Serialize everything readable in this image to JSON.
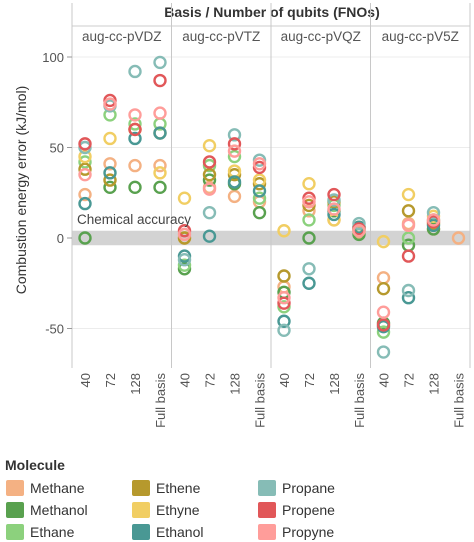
{
  "chart_data": {
    "type": "scatter",
    "title": "Basis  /  Number of qubits (FNOs)",
    "ylabel": "Combustion energy error (kJ/mol)",
    "ylim": [
      -70,
      105
    ],
    "yticks": [
      -50,
      0,
      50,
      100
    ],
    "grid": "horizontal",
    "panels": [
      "aug-cc-pVDZ",
      "aug-cc-pVTZ",
      "aug-cc-pVQZ",
      "aug-cc-pV5Z"
    ],
    "categories": [
      "40",
      "72",
      "128",
      "Full basis"
    ],
    "annotation": {
      "text": "Chemical accuracy",
      "band": [
        -4,
        4
      ]
    },
    "legend": {
      "title": "Molecule",
      "position": "bottom"
    },
    "series": [
      {
        "name": "Methane",
        "color": "#f4b183",
        "points": [
          [
            0,
            "40",
            24
          ],
          [
            0,
            "72",
            41
          ],
          [
            0,
            "128",
            40
          ],
          [
            0,
            "Full basis",
            40
          ],
          [
            1,
            "40",
            0
          ],
          [
            1,
            "72",
            28
          ],
          [
            1,
            "128",
            23
          ],
          [
            1,
            "Full basis",
            20
          ],
          [
            2,
            "40",
            -27
          ],
          [
            2,
            "72",
            15
          ],
          [
            2,
            "128",
            10
          ],
          [
            2,
            "Full basis",
            3
          ],
          [
            3,
            "40",
            -22
          ],
          [
            3,
            "72",
            8
          ],
          [
            3,
            "128",
            5
          ],
          [
            3,
            "Full basis",
            0
          ]
        ]
      },
      {
        "name": "Methanol",
        "color": "#59a14f",
        "points": [
          [
            0,
            "40",
            0
          ],
          [
            0,
            "72",
            28
          ],
          [
            0,
            "128",
            28
          ],
          [
            0,
            "Full basis",
            28
          ],
          [
            1,
            "40",
            -17
          ],
          [
            1,
            "72",
            32
          ],
          [
            1,
            "128",
            30
          ],
          [
            1,
            "Full basis",
            14
          ],
          [
            2,
            "40",
            -30
          ],
          [
            2,
            "72",
            0
          ],
          [
            2,
            "128",
            15
          ],
          [
            2,
            "Full basis",
            2
          ],
          [
            3,
            "40",
            -47
          ],
          [
            3,
            "72",
            -4
          ],
          [
            3,
            "128",
            5
          ]
        ]
      },
      {
        "name": "Ethane",
        "color": "#8cd17d",
        "points": [
          [
            0,
            "40",
            42
          ],
          [
            0,
            "72",
            68
          ],
          [
            0,
            "128",
            63
          ],
          [
            0,
            "Full basis",
            63
          ],
          [
            1,
            "40",
            -15
          ],
          [
            1,
            "72",
            40
          ],
          [
            1,
            "128",
            45
          ],
          [
            1,
            "Full basis",
            22
          ],
          [
            2,
            "40",
            -38
          ],
          [
            2,
            "72",
            10
          ],
          [
            2,
            "128",
            18
          ],
          [
            2,
            "Full basis",
            4
          ],
          [
            3,
            "40",
            -52
          ],
          [
            3,
            "72",
            0
          ],
          [
            3,
            "128",
            10
          ]
        ]
      },
      {
        "name": "Ethene",
        "color": "#b6992d",
        "points": [
          [
            0,
            "40",
            38
          ],
          [
            0,
            "72",
            32
          ],
          [
            0,
            "128",
            60
          ],
          [
            0,
            "Full basis",
            58
          ],
          [
            1,
            "40",
            0
          ],
          [
            1,
            "72",
            35
          ],
          [
            1,
            "128",
            35
          ],
          [
            1,
            "Full basis",
            30
          ],
          [
            2,
            "40",
            -21
          ],
          [
            2,
            "72",
            18
          ],
          [
            2,
            "128",
            20
          ],
          [
            2,
            "Full basis",
            5
          ],
          [
            3,
            "40",
            -28
          ],
          [
            3,
            "72",
            15
          ],
          [
            3,
            "128",
            8
          ]
        ]
      },
      {
        "name": "Ethyne",
        "color": "#f1ce63",
        "points": [
          [
            0,
            "40",
            45
          ],
          [
            0,
            "72",
            55
          ],
          [
            0,
            "128",
            60
          ],
          [
            0,
            "Full basis",
            36
          ],
          [
            1,
            "40",
            22
          ],
          [
            1,
            "72",
            51
          ],
          [
            1,
            "128",
            37
          ],
          [
            1,
            "Full basis",
            32
          ],
          [
            2,
            "40",
            4
          ],
          [
            2,
            "72",
            30
          ],
          [
            2,
            "128",
            10
          ],
          [
            2,
            "Full basis",
            6
          ],
          [
            3,
            "40",
            -2
          ],
          [
            3,
            "72",
            24
          ],
          [
            3,
            "128",
            12
          ]
        ]
      },
      {
        "name": "Ethanol",
        "color": "#499894",
        "points": [
          [
            0,
            "40",
            19
          ],
          [
            0,
            "72",
            36
          ],
          [
            0,
            "128",
            55
          ],
          [
            0,
            "Full basis",
            58
          ],
          [
            1,
            "40",
            -10
          ],
          [
            1,
            "72",
            1
          ],
          [
            1,
            "128",
            31
          ],
          [
            1,
            "Full basis",
            26
          ],
          [
            2,
            "40",
            -46
          ],
          [
            2,
            "72",
            -25
          ],
          [
            2,
            "128",
            13
          ],
          [
            2,
            "Full basis",
            6
          ],
          [
            3,
            "40",
            -49
          ],
          [
            3,
            "72",
            -33
          ],
          [
            3,
            "128",
            7
          ]
        ]
      },
      {
        "name": "Propane",
        "color": "#86bcb6",
        "points": [
          [
            0,
            "40",
            50
          ],
          [
            0,
            "72",
            73
          ],
          [
            0,
            "128",
            92
          ],
          [
            0,
            "Full basis",
            97
          ],
          [
            1,
            "40",
            -12
          ],
          [
            1,
            "72",
            14
          ],
          [
            1,
            "128",
            57
          ],
          [
            1,
            "Full basis",
            43
          ],
          [
            2,
            "40",
            -51
          ],
          [
            2,
            "72",
            -17
          ],
          [
            2,
            "128",
            21
          ],
          [
            2,
            "Full basis",
            8
          ],
          [
            3,
            "40",
            -63
          ],
          [
            3,
            "72",
            -29
          ],
          [
            3,
            "128",
            14
          ]
        ]
      },
      {
        "name": "Propene",
        "color": "#e15759",
        "points": [
          [
            0,
            "40",
            52
          ],
          [
            0,
            "72",
            76
          ],
          [
            0,
            "128",
            60
          ],
          [
            0,
            "Full basis",
            87
          ],
          [
            1,
            "40",
            4
          ],
          [
            1,
            "72",
            42
          ],
          [
            1,
            "128",
            52
          ],
          [
            1,
            "Full basis",
            39
          ],
          [
            2,
            "40",
            -36
          ],
          [
            2,
            "72",
            22
          ],
          [
            2,
            "128",
            24
          ],
          [
            2,
            "Full basis",
            5
          ],
          [
            3,
            "40",
            -48
          ],
          [
            3,
            "72",
            -10
          ],
          [
            3,
            "128",
            9
          ]
        ]
      },
      {
        "name": "Propyne",
        "color": "#ff9d9a",
        "points": [
          [
            0,
            "40",
            35
          ],
          [
            0,
            "72",
            74
          ],
          [
            0,
            "128",
            68
          ],
          [
            0,
            "Full basis",
            69
          ],
          [
            1,
            "40",
            2
          ],
          [
            1,
            "72",
            27
          ],
          [
            1,
            "128",
            48
          ],
          [
            1,
            "Full basis",
            41
          ],
          [
            2,
            "40",
            -33
          ],
          [
            2,
            "72",
            20
          ],
          [
            2,
            "128",
            16
          ],
          [
            2,
            "Full basis",
            4
          ],
          [
            3,
            "40",
            -41
          ],
          [
            3,
            "72",
            7
          ],
          [
            3,
            "128",
            10
          ]
        ]
      }
    ]
  }
}
